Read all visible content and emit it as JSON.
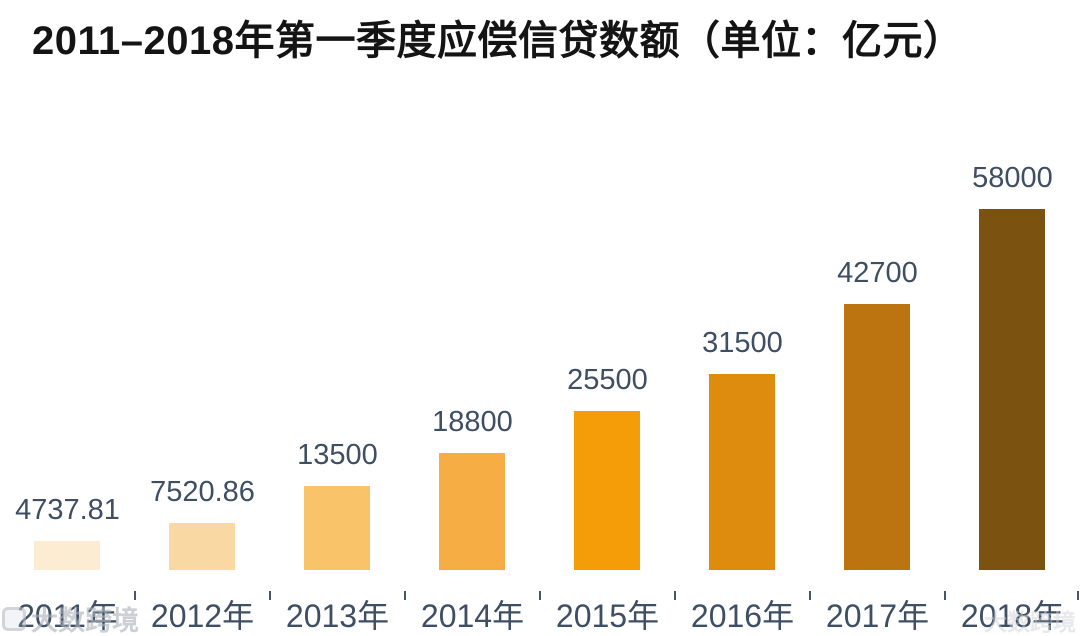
{
  "title": "2011–2018年第一季度应偿信贷数额（单位：亿元）",
  "chart_data": {
    "type": "bar",
    "title": "2011–2018年第一季度应偿信贷数额（单位：亿元）",
    "unit": "亿元",
    "categories": [
      "2011年",
      "2012年",
      "2013年",
      "2014年",
      "2015年",
      "2016年",
      "2017年",
      "2018年"
    ],
    "values": [
      4737.81,
      7520.86,
      13500,
      18800,
      25500,
      31500,
      42700,
      58000
    ],
    "value_labels": [
      "4737.81",
      "7520.86",
      "13500",
      "18800",
      "25500",
      "31500",
      "42700",
      "58000"
    ],
    "xlabel": "",
    "ylabel": "",
    "ylim": [
      0,
      60000
    ],
    "grid": false,
    "legend": "none",
    "y_axis_visible": false,
    "bar_colors": [
      "#FCEDD2",
      "#FAD8A4",
      "#F8C369",
      "#F6AD44",
      "#F49D08",
      "#DE8C0D",
      "#BB7410",
      "#7B5210"
    ],
    "label_color": "#3E4E63",
    "axis_tick_color": "#47566A",
    "title_color": "#141414",
    "background": "#FFFFFF"
  },
  "watermark": {
    "left": "大数跨境",
    "right": "大数跨境"
  }
}
